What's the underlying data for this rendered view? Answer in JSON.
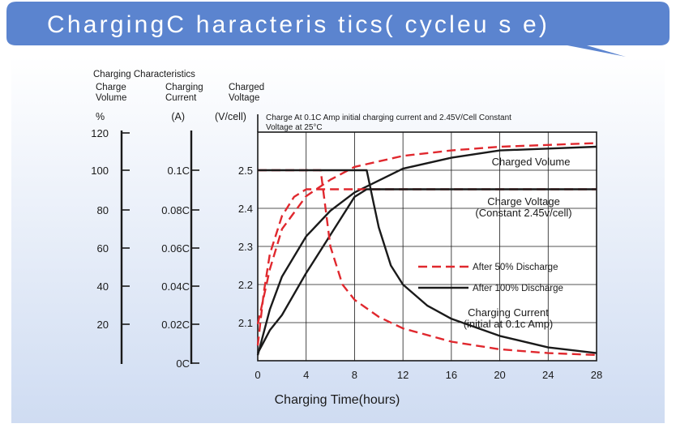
{
  "banner": {
    "title": "ChargingC haracteris tics( cycleu s e)"
  },
  "colors": {
    "banner_blue": "#5b84cf",
    "panel_gradient_top": "#ffffff",
    "panel_gradient_bottom": "#cfdcf2",
    "after_50_red": "#e0282e",
    "after_100_black": "#1a1a1a"
  },
  "chart_data": {
    "type": "line",
    "title": "Charging Characteristics",
    "annotation": [
      "Charge At 0.1C Amp initial charging current  and 2.45V/Cell Constant",
      "Voltage  at 25°C"
    ],
    "xlabel": "Charging Time(hours)",
    "x_ticks": [
      "0",
      "4",
      "8",
      "12",
      "16",
      "20",
      "24",
      "28"
    ],
    "xlim": [
      0,
      28
    ],
    "grid": true,
    "axes": [
      {
        "name": "charge-volume",
        "header": [
          "Charge",
          "Volume"
        ],
        "unit": "%",
        "ticks": [
          "120",
          "100",
          "80",
          "60",
          "40",
          "20"
        ]
      },
      {
        "name": "charging-current",
        "header": [
          "Charging",
          "Current"
        ],
        "unit": "(A)",
        "ticks": [
          "0.1C",
          "0.08C",
          "0.06C",
          "0.04C",
          "0.02C",
          "0C"
        ]
      },
      {
        "name": "charged-voltage",
        "header": [
          "Charged",
          "Voltage"
        ],
        "unit": "(V/cell)",
        "ticks": [
          "2.5",
          "2.4",
          "2.3",
          "2.2",
          "2.1"
        ]
      }
    ],
    "curve_labels": [
      [
        "Charged Volume"
      ],
      [
        "Charge Voltage",
        "(Constant 2.45v/cell)"
      ],
      [
        "Charging Current",
        "(initial at 0.1c Amp)"
      ]
    ],
    "legend": [
      {
        "label": "After 50% Discharge",
        "style": "dashed",
        "color": "#e0282e"
      },
      {
        "label": "After 100% Discharge",
        "style": "solid",
        "color": "#1a1a1a"
      }
    ],
    "series": [
      {
        "group": "After 50% Discharge",
        "quantity": "charged volume (%)",
        "x": [
          0,
          1,
          2,
          4,
          6,
          8,
          12,
          16,
          20,
          24,
          28
        ],
        "y": [
          20,
          50,
          72,
          90,
          99,
          106,
          112,
          115,
          117,
          118,
          119
        ]
      },
      {
        "group": "After 100% Discharge",
        "quantity": "charged volume (%)",
        "x": [
          0,
          1,
          2,
          4,
          6,
          8,
          12,
          16,
          20,
          24,
          28
        ],
        "y": [
          3,
          28,
          46,
          68,
          82,
          92,
          105,
          111,
          115,
          116,
          117
        ]
      },
      {
        "group": "After 50% Discharge",
        "quantity": "charged voltage (V/cell)",
        "x": [
          0,
          0.5,
          1,
          2,
          3,
          4,
          5,
          6,
          28
        ],
        "y": [
          2.04,
          2.18,
          2.28,
          2.38,
          2.43,
          2.45,
          2.45,
          2.45,
          2.45
        ]
      },
      {
        "group": "After 100% Discharge",
        "quantity": "charged voltage (V/cell)",
        "x": [
          0,
          0.5,
          1,
          2,
          4,
          6,
          7,
          8,
          9,
          28
        ],
        "y": [
          2.02,
          2.05,
          2.08,
          2.12,
          2.23,
          2.33,
          2.38,
          2.43,
          2.45,
          2.45
        ]
      },
      {
        "group": "After 50% Discharge",
        "quantity": "charging current (C)",
        "x": [
          0,
          5.2,
          5.5,
          6,
          7,
          8,
          10,
          12,
          16,
          20,
          24,
          28
        ],
        "y": [
          0.1,
          0.1,
          0.085,
          0.06,
          0.04,
          0.032,
          0.023,
          0.017,
          0.01,
          0.006,
          0.004,
          0.003
        ]
      },
      {
        "group": "After 100% Discharge",
        "quantity": "charging current (C)",
        "x": [
          0,
          9,
          9.5,
          10,
          11,
          12,
          14,
          16,
          20,
          24,
          28
        ],
        "y": [
          0.1,
          0.1,
          0.085,
          0.07,
          0.05,
          0.04,
          0.029,
          0.022,
          0.013,
          0.007,
          0.004
        ]
      }
    ]
  }
}
